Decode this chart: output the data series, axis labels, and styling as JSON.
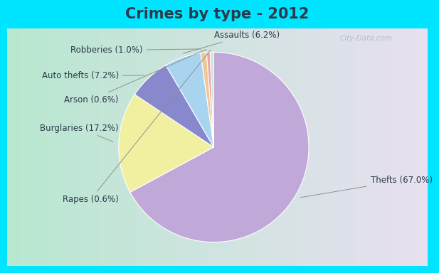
{
  "title": "Crimes by type - 2012",
  "slices": [
    {
      "label": "Thefts (67.0%)",
      "value": 67.0,
      "color": "#c0a8d8"
    },
    {
      "label": "Burglaries (17.2%)",
      "value": 17.2,
      "color": "#f0f0a0"
    },
    {
      "label": "Auto thefts (7.2%)",
      "value": 7.2,
      "color": "#8888cc"
    },
    {
      "label": "Assaults (6.2%)",
      "value": 6.2,
      "color": "#a8d4f0"
    },
    {
      "label": "Robberies (1.0%)",
      "value": 1.0,
      "color": "#f0c898"
    },
    {
      "label": "Arson (0.6%)",
      "value": 0.6,
      "color": "#f0a0a8"
    },
    {
      "label": "Rapes (0.6%)",
      "value": 0.6,
      "color": "#c8e8d0"
    }
  ],
  "bg_cyan": "#00e5ff",
  "bg_grad_left": "#b8e8d0",
  "bg_grad_right": "#e8e0f0",
  "title_fontsize": 15,
  "label_fontsize": 8.5,
  "title_color": "#2a3a4a",
  "label_color": "#2a3a4a"
}
